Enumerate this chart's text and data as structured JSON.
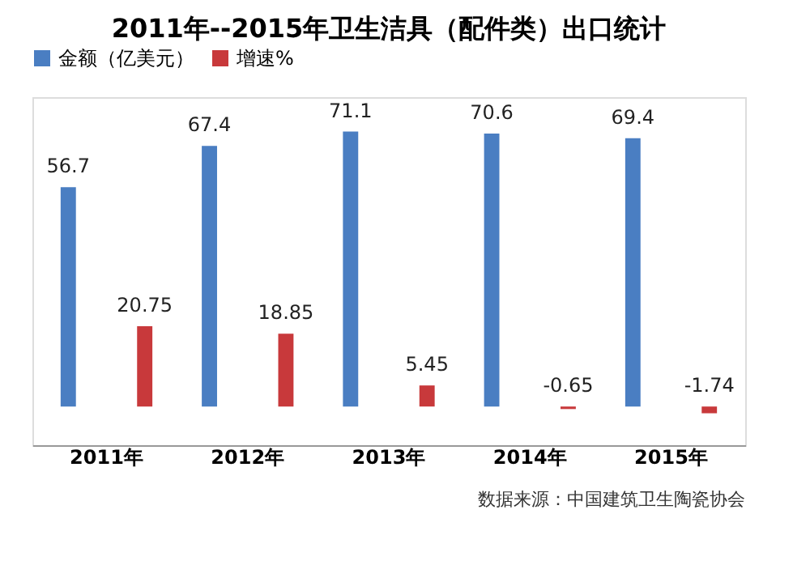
{
  "chart_data": {
    "type": "bar",
    "title": "2011年--2015年卫生洁具（配件类）出口统计",
    "categories": [
      "2011年",
      "2012年",
      "2013年",
      "2014年",
      "2015年"
    ],
    "series": [
      {
        "name": "金额（亿美元）",
        "color": "#4a7ec2",
        "values": [
          56.7,
          67.4,
          71.1,
          70.6,
          69.4
        ]
      },
      {
        "name": "增速%",
        "color": "#c8393b",
        "values": [
          20.75,
          18.85,
          5.45,
          -0.65,
          -1.74
        ]
      }
    ],
    "data_labels": true,
    "legend": "top",
    "grid": false,
    "annotations": [
      "数据来源：中国建筑卫生陶瓷协会"
    ]
  }
}
